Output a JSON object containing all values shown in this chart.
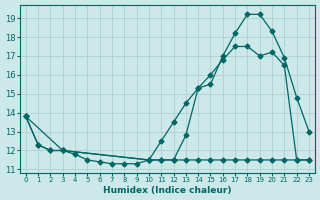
{
  "xlabel": "Humidex (Indice chaleur)",
  "bg_color": "#cce8e8",
  "grid_color": "#aacccc",
  "line_color": "#006666",
  "xlim": [
    -0.5,
    23.5
  ],
  "ylim": [
    10.8,
    19.7
  ],
  "yticks": [
    11,
    12,
    13,
    14,
    15,
    16,
    17,
    18,
    19
  ],
  "xticks": [
    0,
    1,
    2,
    3,
    4,
    5,
    6,
    7,
    8,
    9,
    10,
    11,
    12,
    13,
    14,
    15,
    16,
    17,
    18,
    19,
    20,
    21,
    22,
    23
  ],
  "line1_x": [
    0,
    1,
    2,
    3,
    10,
    11,
    12,
    13,
    14,
    15,
    16,
    17,
    18,
    19,
    20,
    21,
    22,
    23
  ],
  "line1_y": [
    13.8,
    12.3,
    12.0,
    12.0,
    11.5,
    11.5,
    11.5,
    12.8,
    15.3,
    15.5,
    17.0,
    18.2,
    19.2,
    19.2,
    18.3,
    16.9,
    14.8,
    13.0
  ],
  "line2_x": [
    0,
    1,
    2,
    3,
    4,
    5,
    6,
    7,
    8,
    9,
    10,
    11,
    12,
    13,
    14,
    15,
    16,
    17,
    18,
    19,
    20,
    21,
    22,
    23
  ],
  "line2_y": [
    13.8,
    12.3,
    12.0,
    12.0,
    11.8,
    11.5,
    11.4,
    11.3,
    11.3,
    11.3,
    11.5,
    11.5,
    11.5,
    11.5,
    11.5,
    11.5,
    11.5,
    11.5,
    11.5,
    11.5,
    11.5,
    11.5,
    11.5,
    11.5
  ],
  "line3_x": [
    0,
    3,
    10,
    11,
    12,
    13,
    14,
    15,
    16,
    17,
    18,
    19,
    20,
    21,
    22,
    23
  ],
  "line3_y": [
    13.8,
    12.0,
    11.5,
    12.5,
    13.5,
    14.5,
    15.3,
    16.0,
    16.8,
    17.5,
    17.5,
    17.0,
    17.2,
    16.5,
    11.5,
    11.5
  ]
}
